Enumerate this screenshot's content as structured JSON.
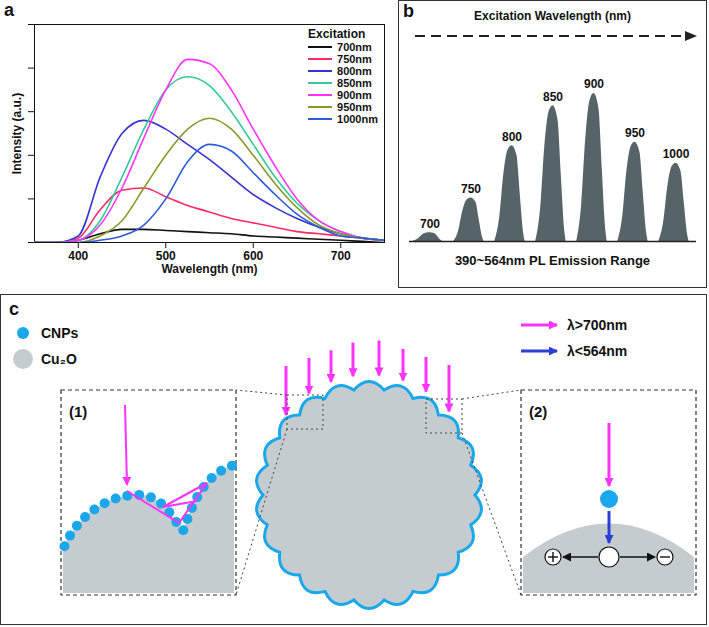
{
  "chart_data": [
    {
      "panel": "a",
      "type": "line",
      "xlabel": "Wavelength (nm)",
      "ylabel": "Intensity (a.u.)",
      "x": [
        350,
        375,
        400,
        425,
        450,
        475,
        500,
        525,
        550,
        575,
        600,
        625,
        650,
        675,
        700,
        725,
        750
      ],
      "series": [
        {
          "name": "700nm",
          "color": "#111111",
          "values": [
            0,
            0,
            1,
            4,
            6,
            6,
            5.5,
            5,
            4.5,
            4,
            3,
            2.5,
            2,
            1.5,
            1,
            0.5,
            0
          ]
        },
        {
          "name": "750nm",
          "color": "#ff2a62",
          "values": [
            0,
            0,
            2,
            15,
            24,
            25,
            21,
            17,
            14,
            11,
            9,
            7,
            5,
            4,
            3,
            2,
            1
          ]
        },
        {
          "name": "800nm",
          "color": "#3434d4",
          "values": [
            0,
            0,
            3,
            30,
            50,
            56,
            52,
            45,
            38,
            30,
            22,
            16,
            11,
            7,
            4,
            2,
            1
          ]
        },
        {
          "name": "850nm",
          "color": "#33cc99",
          "values": [
            0,
            0,
            1,
            10,
            30,
            52,
            70,
            76,
            72,
            60,
            45,
            30,
            18,
            10,
            5,
            2,
            1
          ]
        },
        {
          "name": "900nm",
          "color": "#ff33ff",
          "values": [
            0,
            0,
            1,
            8,
            25,
            48,
            70,
            84,
            82,
            70,
            52,
            35,
            20,
            10,
            5,
            2,
            1
          ]
        },
        {
          "name": "950nm",
          "color": "#8a9a2a",
          "values": [
            0,
            0,
            0,
            3,
            10,
            25,
            40,
            52,
            57,
            52,
            40,
            27,
            16,
            8,
            4,
            2,
            1
          ]
        },
        {
          "name": "1000nm",
          "color": "#2e5bd8",
          "values": [
            0,
            0,
            0,
            1,
            3,
            8,
            20,
            37,
            45,
            42,
            32,
            22,
            13,
            7,
            3,
            2,
            1
          ]
        }
      ],
      "xlim": [
        350,
        750
      ],
      "xticks": [
        400,
        500,
        600,
        700
      ],
      "ylim": [
        0,
        100
      ],
      "yticks": [
        0,
        20,
        40,
        60,
        80,
        100
      ],
      "tick_labels": "x",
      "legend": "top-right",
      "legend_title": "Excitation"
    },
    {
      "panel": "b",
      "type": "area",
      "title": "Excitation Wavelength (nm)",
      "xlabel": "390~564nm PL Emission Range",
      "categories": [
        "700",
        "750",
        "800",
        "850",
        "900",
        "950",
        "1000"
      ],
      "values": [
        5,
        25,
        55,
        78,
        85,
        57,
        45
      ],
      "ylim": [
        0,
        100
      ],
      "tick_labels": false,
      "color": "#56646a"
    }
  ],
  "diagram": {
    "panel": "c",
    "legend": [
      {
        "label": "CNPs",
        "color": "#1aa7ec"
      },
      {
        "label": "Cu₂O",
        "color": "#c5cccf"
      }
    ],
    "arrows": [
      {
        "label": "λ>700nm",
        "color": "#ff33ff"
      },
      {
        "label": "λ<564nm",
        "color": "#2a3fd6"
      }
    ],
    "insets": [
      "(1)",
      "(2)"
    ]
  }
}
